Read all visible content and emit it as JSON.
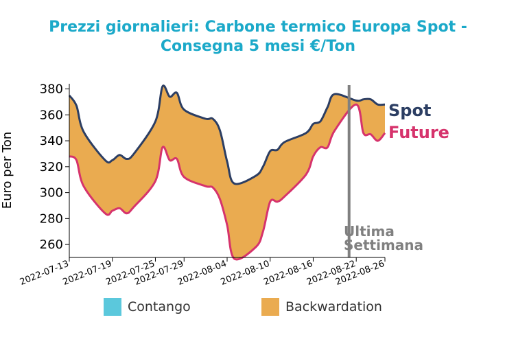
{
  "chart_data": {
    "type": "area",
    "title_lines": [
      "Prezzi giornalieri: Carbone termico Europa Spot -",
      "Consegna 5 mesi €/Ton"
    ],
    "xlabel": "",
    "ylabel": "Euro per Ton",
    "ylim": [
      250,
      384
    ],
    "yticks": [
      260,
      280,
      300,
      320,
      340,
      360,
      380
    ],
    "xticks": [
      "2022-07-13",
      "2022-07-19",
      "2022-07-25",
      "2022-07-29",
      "2022-08-04",
      "2022-08-10",
      "2022-08-16",
      "2022-08-22",
      "2022-08-26"
    ],
    "x": [
      "2022-07-13",
      "2022-07-14",
      "2022-07-15",
      "2022-07-18",
      "2022-07-19",
      "2022-07-20",
      "2022-07-21",
      "2022-07-22",
      "2022-07-25",
      "2022-07-26",
      "2022-07-27",
      "2022-07-28",
      "2022-07-29",
      "2022-08-01",
      "2022-08-02",
      "2022-08-03",
      "2022-08-04",
      "2022-08-05",
      "2022-08-08",
      "2022-08-09",
      "2022-08-10",
      "2022-08-11",
      "2022-08-12",
      "2022-08-15",
      "2022-08-16",
      "2022-08-17",
      "2022-08-18",
      "2022-08-19",
      "2022-08-22",
      "2022-08-23",
      "2022-08-24",
      "2022-08-25",
      "2022-08-26"
    ],
    "series": [
      {
        "name": "Spot",
        "color": "#2c3e63",
        "values": [
          375,
          367,
          347,
          325,
          325,
          329,
          326,
          330,
          355,
          382,
          374,
          377,
          364,
          357,
          357,
          348,
          324,
          307,
          313,
          320,
          332,
          333,
          339,
          346,
          353,
          355,
          366,
          376,
          371,
          372,
          372,
          368,
          368
        ]
      },
      {
        "name": "Future",
        "color": "#d6336c",
        "values": [
          328,
          325,
          305,
          284,
          286,
          288,
          284,
          289,
          309,
          335,
          325,
          326,
          312,
          305,
          304,
          295,
          275,
          249,
          258,
          270,
          293,
          293,
          297,
          314,
          328,
          335,
          335,
          348,
          368,
          346,
          345,
          340,
          346
        ]
      }
    ],
    "legend": [
      {
        "label": "Contango",
        "color": "#5bc8dc"
      },
      {
        "label": "Backwardation",
        "color": "#eaab50"
      }
    ],
    "legend_position": "bottom",
    "annotation": {
      "text_lines": [
        "Ultima",
        "Settimana"
      ],
      "at_x": "2022-08-21",
      "color": "#808080"
    },
    "grid": false
  }
}
